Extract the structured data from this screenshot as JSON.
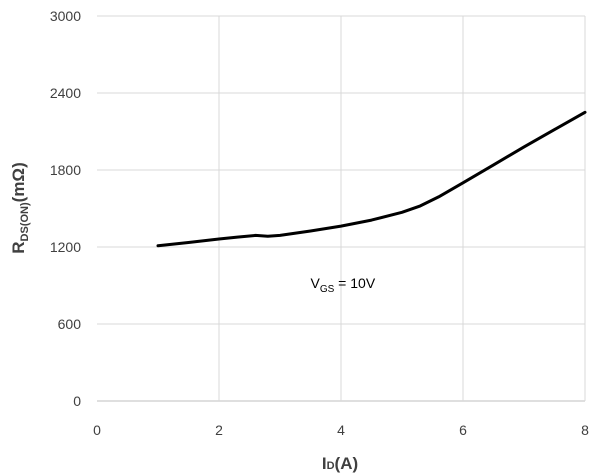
{
  "chart_data": {
    "type": "line",
    "xlim": [
      0,
      8
    ],
    "ylim": [
      0,
      3000
    ],
    "x_ticks": [
      0,
      2,
      4,
      6,
      8
    ],
    "y_ticks": [
      0,
      600,
      1200,
      1800,
      2400,
      3000
    ],
    "grid": {
      "x": true,
      "y": true
    },
    "xlabel": {
      "main": "I",
      "sub": "D",
      "suffix": "(A)"
    },
    "ylabel": {
      "main": "R",
      "sub": "DS(ON)",
      "suffix": "(mΩ)"
    },
    "annotation": {
      "main": "V",
      "sub": "GS",
      "suffix": " = 10V",
      "x": 3.5,
      "y": 880
    },
    "series": [
      {
        "color": "#000000",
        "x": [
          1.0,
          1.5,
          2.0,
          2.3,
          2.6,
          2.8,
          3.0,
          3.5,
          4.0,
          4.5,
          5.0,
          5.3,
          5.6,
          6.0,
          6.5,
          7.0,
          7.5,
          8.0
        ],
        "y": [
          1210,
          1235,
          1262,
          1277,
          1290,
          1283,
          1290,
          1325,
          1363,
          1410,
          1470,
          1520,
          1590,
          1700,
          1840,
          1980,
          2115,
          2250
        ]
      }
    ]
  }
}
